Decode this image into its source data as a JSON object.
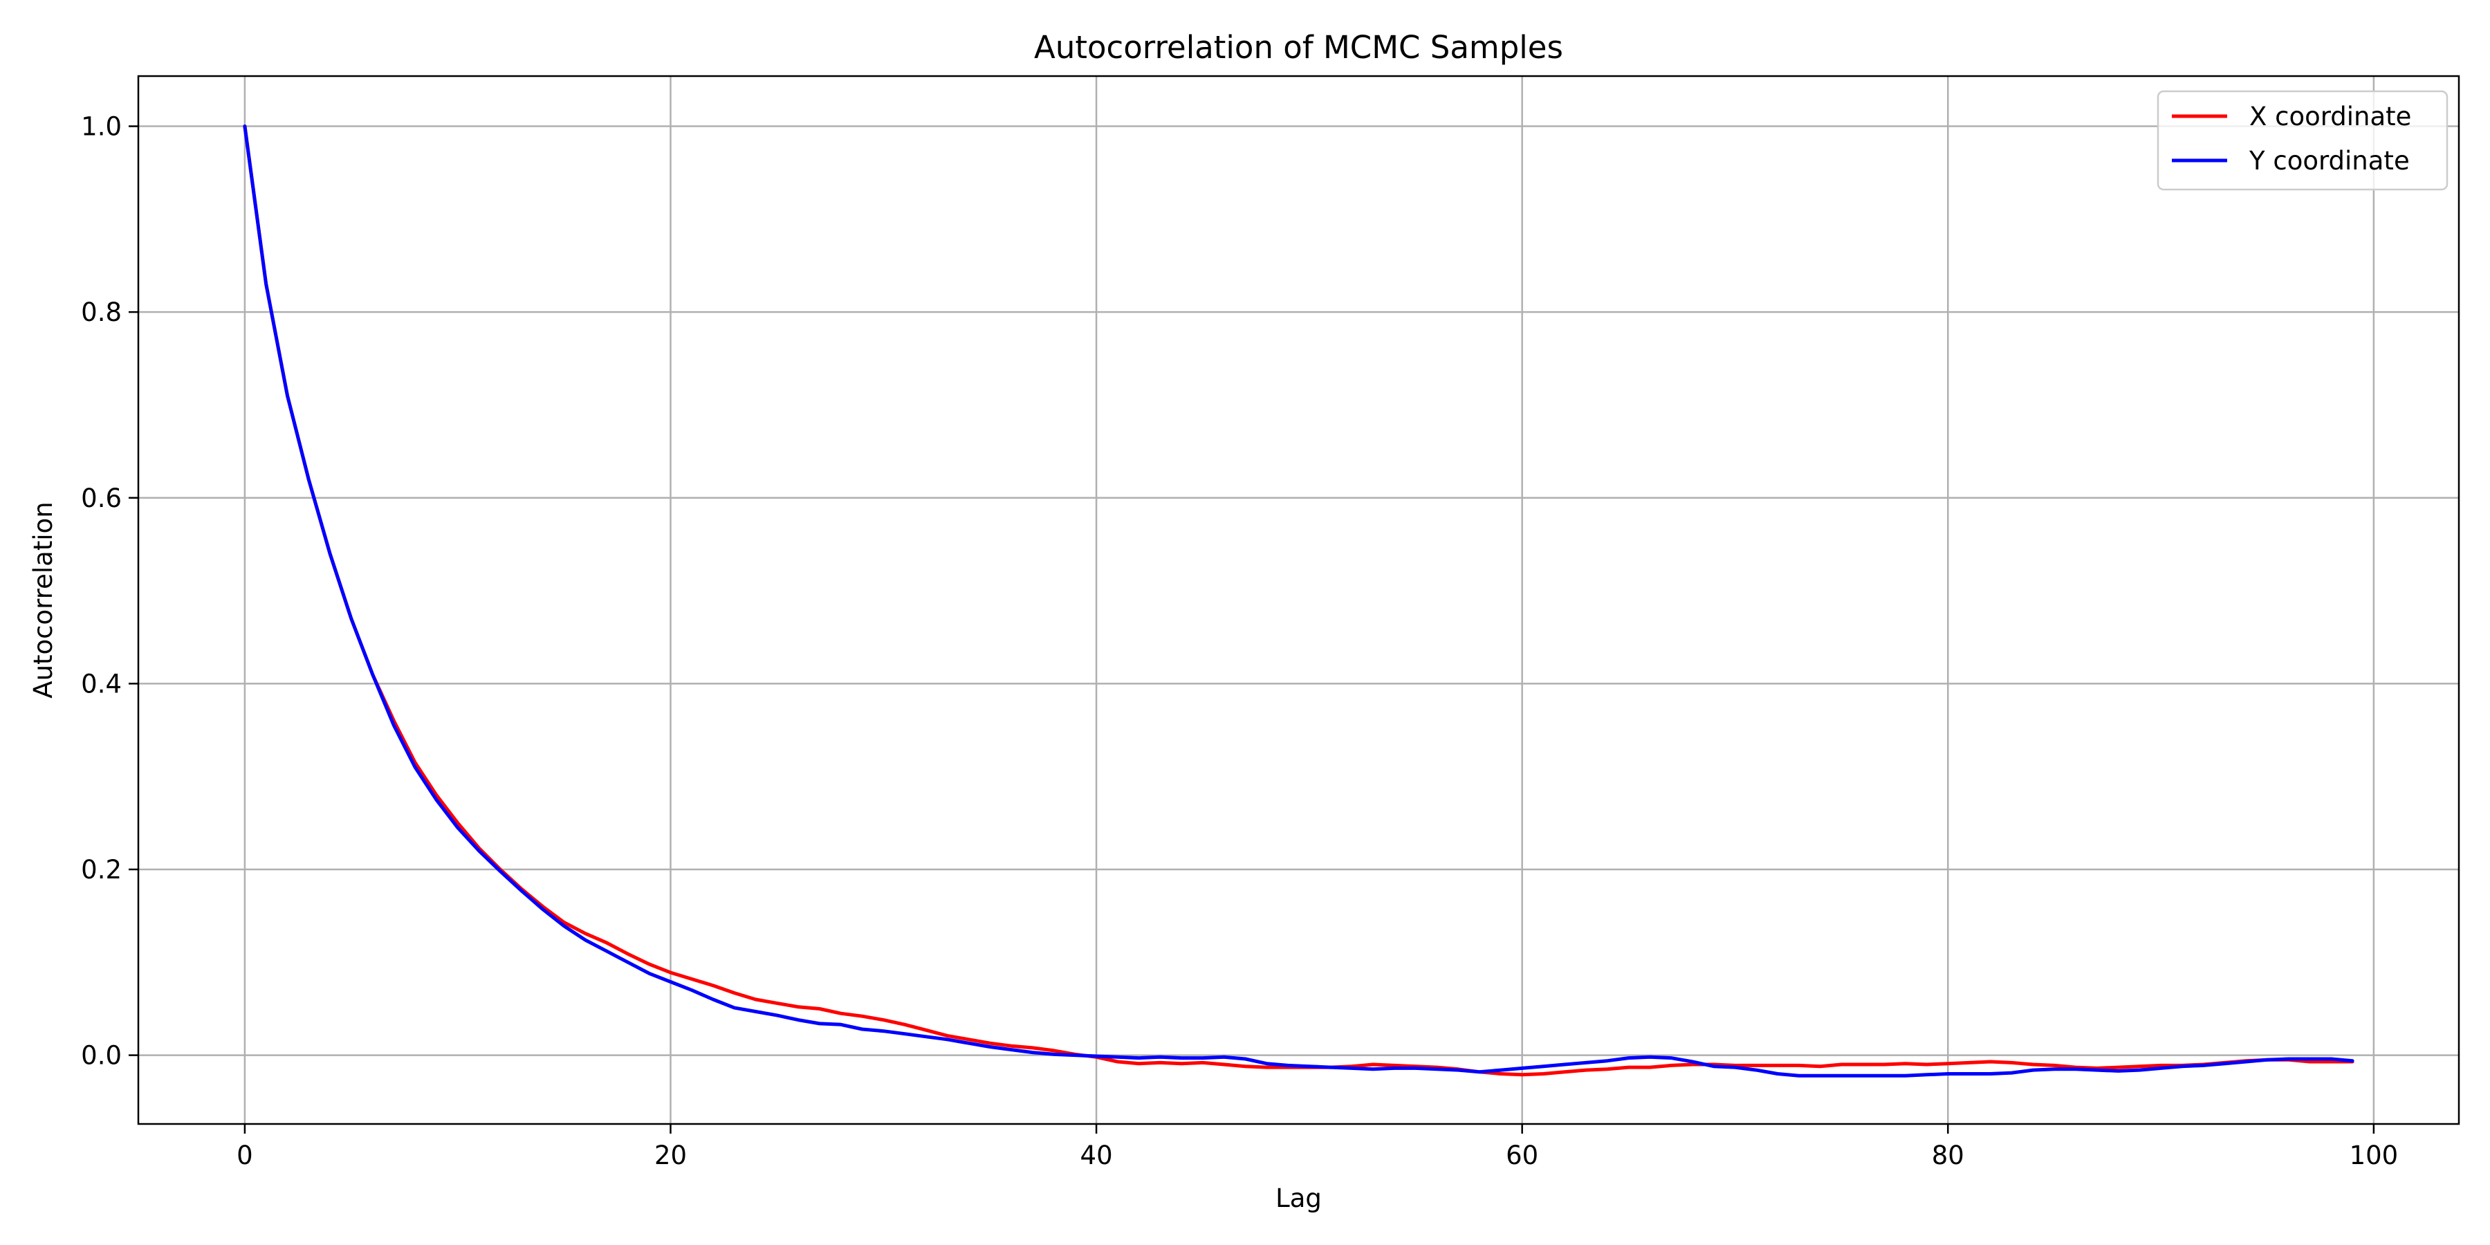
{
  "chart_data": {
    "type": "line",
    "title": "Autocorrelation of MCMC Samples",
    "xlabel": "Lag",
    "ylabel": "Autocorrelation",
    "xlim": [
      -5,
      104
    ],
    "ylim": [
      -0.074,
      1.054
    ],
    "xticks": [
      0,
      20,
      40,
      60,
      80,
      100
    ],
    "xtick_labels": [
      "0",
      "20",
      "40",
      "60",
      "80",
      "100"
    ],
    "yticks": [
      0.0,
      0.2,
      0.4,
      0.6,
      0.8,
      1.0
    ],
    "ytick_labels": [
      "0.0",
      "0.2",
      "0.4",
      "0.6",
      "0.8",
      "1.0"
    ],
    "grid": true,
    "legend_position": "top-right",
    "x": [
      0,
      1,
      2,
      3,
      4,
      5,
      6,
      7,
      8,
      9,
      10,
      11,
      12,
      13,
      14,
      15,
      16,
      17,
      18,
      19,
      20,
      21,
      22,
      23,
      24,
      25,
      26,
      27,
      28,
      29,
      30,
      31,
      32,
      33,
      34,
      35,
      36,
      37,
      38,
      39,
      40,
      41,
      42,
      43,
      44,
      45,
      46,
      47,
      48,
      49,
      50,
      51,
      52,
      53,
      54,
      55,
      56,
      57,
      58,
      59,
      60,
      61,
      62,
      63,
      64,
      65,
      66,
      67,
      68,
      69,
      70,
      71,
      72,
      73,
      74,
      75,
      76,
      77,
      78,
      79,
      80,
      81,
      82,
      83,
      84,
      85,
      86,
      87,
      88,
      89,
      90,
      91,
      92,
      93,
      94,
      95,
      96,
      97,
      98,
      99
    ],
    "series": [
      {
        "name": "X coordinate",
        "color": "#ff0000",
        "values": [
          1.0,
          0.83,
          0.71,
          0.62,
          0.54,
          0.47,
          0.41,
          0.36,
          0.315,
          0.28,
          0.25,
          0.223,
          0.2,
          0.179,
          0.16,
          0.143,
          0.131,
          0.121,
          0.109,
          0.098,
          0.089,
          0.082,
          0.075,
          0.067,
          0.06,
          0.056,
          0.052,
          0.05,
          0.045,
          0.042,
          0.038,
          0.033,
          0.027,
          0.021,
          0.017,
          0.013,
          0.01,
          0.008,
          0.005,
          0.001,
          -0.002,
          -0.007,
          -0.009,
          -0.008,
          -0.009,
          -0.008,
          -0.01,
          -0.012,
          -0.013,
          -0.013,
          -0.013,
          -0.013,
          -0.012,
          -0.01,
          -0.011,
          -0.012,
          -0.013,
          -0.015,
          -0.018,
          -0.02,
          -0.021,
          -0.02,
          -0.018,
          -0.016,
          -0.015,
          -0.013,
          -0.013,
          -0.011,
          -0.01,
          -0.01,
          -0.011,
          -0.011,
          -0.011,
          -0.011,
          -0.012,
          -0.01,
          -0.01,
          -0.01,
          -0.009,
          -0.01,
          -0.009,
          -0.008,
          -0.007,
          -0.008,
          -0.01,
          -0.011,
          -0.013,
          -0.014,
          -0.013,
          -0.012,
          -0.011,
          -0.011,
          -0.01,
          -0.008,
          -0.006,
          -0.005,
          -0.005,
          -0.007,
          -0.007,
          -0.007
        ]
      },
      {
        "name": "Y coordinate",
        "color": "#0000ff",
        "values": [
          1.0,
          0.83,
          0.71,
          0.62,
          0.54,
          0.47,
          0.41,
          0.355,
          0.31,
          0.275,
          0.245,
          0.22,
          0.198,
          0.177,
          0.157,
          0.139,
          0.124,
          0.112,
          0.1,
          0.088,
          0.079,
          0.07,
          0.06,
          0.051,
          0.047,
          0.043,
          0.038,
          0.034,
          0.033,
          0.028,
          0.026,
          0.023,
          0.02,
          0.017,
          0.013,
          0.009,
          0.006,
          0.003,
          0.001,
          0.0,
          -0.001,
          -0.002,
          -0.003,
          -0.002,
          -0.003,
          -0.003,
          -0.002,
          -0.004,
          -0.009,
          -0.011,
          -0.012,
          -0.013,
          -0.014,
          -0.015,
          -0.014,
          -0.014,
          -0.015,
          -0.016,
          -0.018,
          -0.016,
          -0.014,
          -0.012,
          -0.01,
          -0.008,
          -0.006,
          -0.003,
          -0.002,
          -0.003,
          -0.007,
          -0.012,
          -0.013,
          -0.016,
          -0.02,
          -0.022,
          -0.022,
          -0.022,
          -0.022,
          -0.022,
          -0.022,
          -0.021,
          -0.02,
          -0.02,
          -0.02,
          -0.019,
          -0.016,
          -0.015,
          -0.015,
          -0.016,
          -0.017,
          -0.016,
          -0.014,
          -0.012,
          -0.011,
          -0.009,
          -0.007,
          -0.005,
          -0.004,
          -0.004,
          -0.004,
          -0.006
        ]
      }
    ]
  }
}
